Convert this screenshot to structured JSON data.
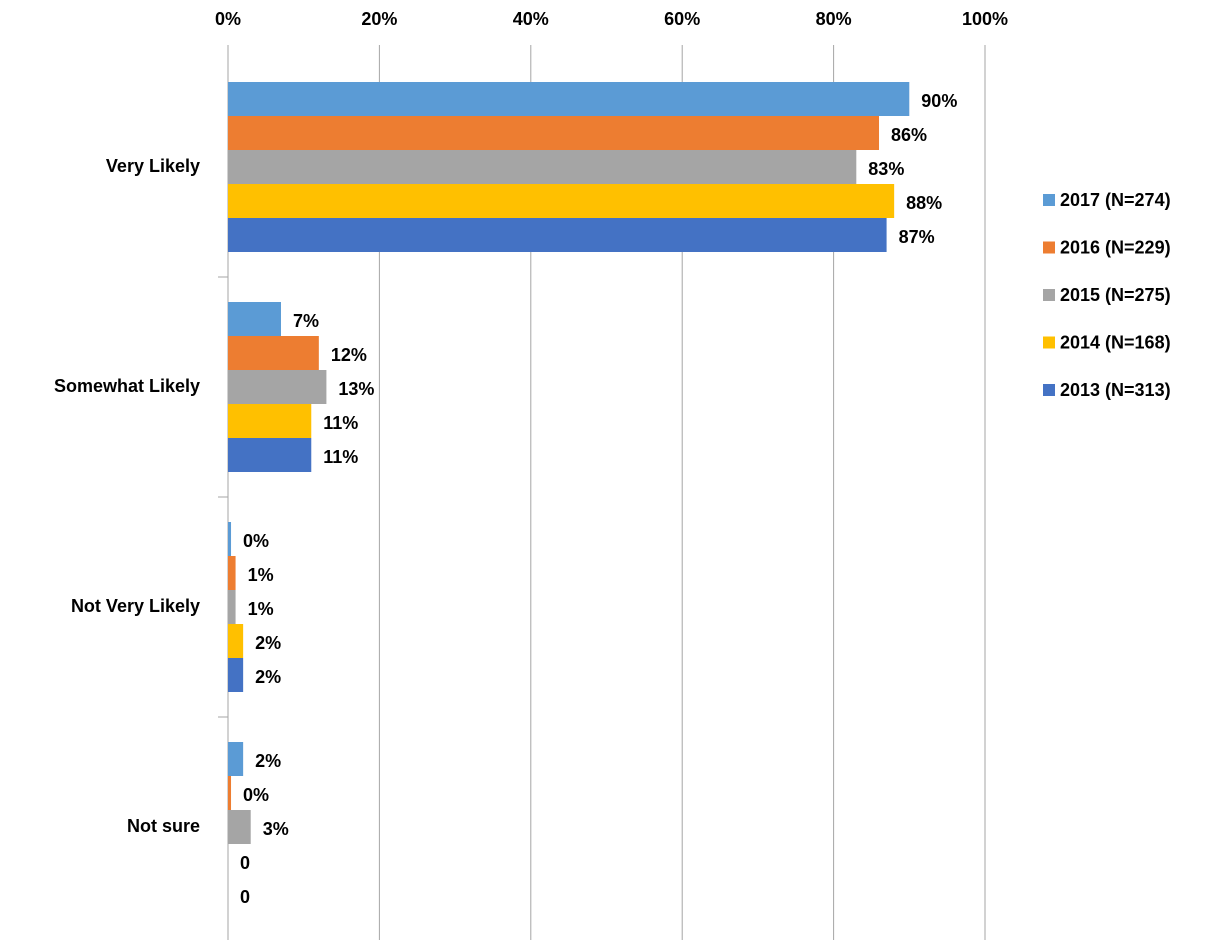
{
  "chart_data": {
    "type": "bar",
    "orientation": "horizontal",
    "categories": [
      "Very Likely",
      "Somewhat Likely",
      "Not Very Likely",
      "Not sure"
    ],
    "series": [
      {
        "name": "2017 (N=274)",
        "color": "#5b9bd5",
        "values": [
          90,
          7,
          0.4,
          2
        ],
        "value_labels": [
          "90%",
          "7%",
          "0%",
          "2%"
        ]
      },
      {
        "name": "2016 (N=229)",
        "color": "#ed7d31",
        "values": [
          86,
          12,
          1,
          0.4
        ],
        "value_labels": [
          "86%",
          "12%",
          "1%",
          "0%"
        ]
      },
      {
        "name": "2015 (N=275)",
        "color": "#a5a5a5",
        "values": [
          83,
          13,
          1,
          3
        ],
        "value_labels": [
          "83%",
          "13%",
          "1%",
          "3%"
        ]
      },
      {
        "name": "2014 (N=168)",
        "color": "#ffc000",
        "values": [
          88,
          11,
          2,
          0
        ],
        "value_labels": [
          "88%",
          "11%",
          "2%",
          "0"
        ]
      },
      {
        "name": "2013 (N=313)",
        "color": "#4472c4",
        "values": [
          87,
          11,
          2,
          0
        ],
        "value_labels": [
          "87%",
          "11%",
          "2%",
          "0"
        ]
      }
    ],
    "xlim": [
      0,
      100
    ],
    "xticks": [
      {
        "value": 0,
        "label": "0%"
      },
      {
        "value": 20,
        "label": "20%"
      },
      {
        "value": 40,
        "label": "40%"
      },
      {
        "value": 60,
        "label": "60%"
      },
      {
        "value": 80,
        "label": "80%"
      },
      {
        "value": 100,
        "label": "100%"
      }
    ],
    "grid": true,
    "legend": "right"
  }
}
